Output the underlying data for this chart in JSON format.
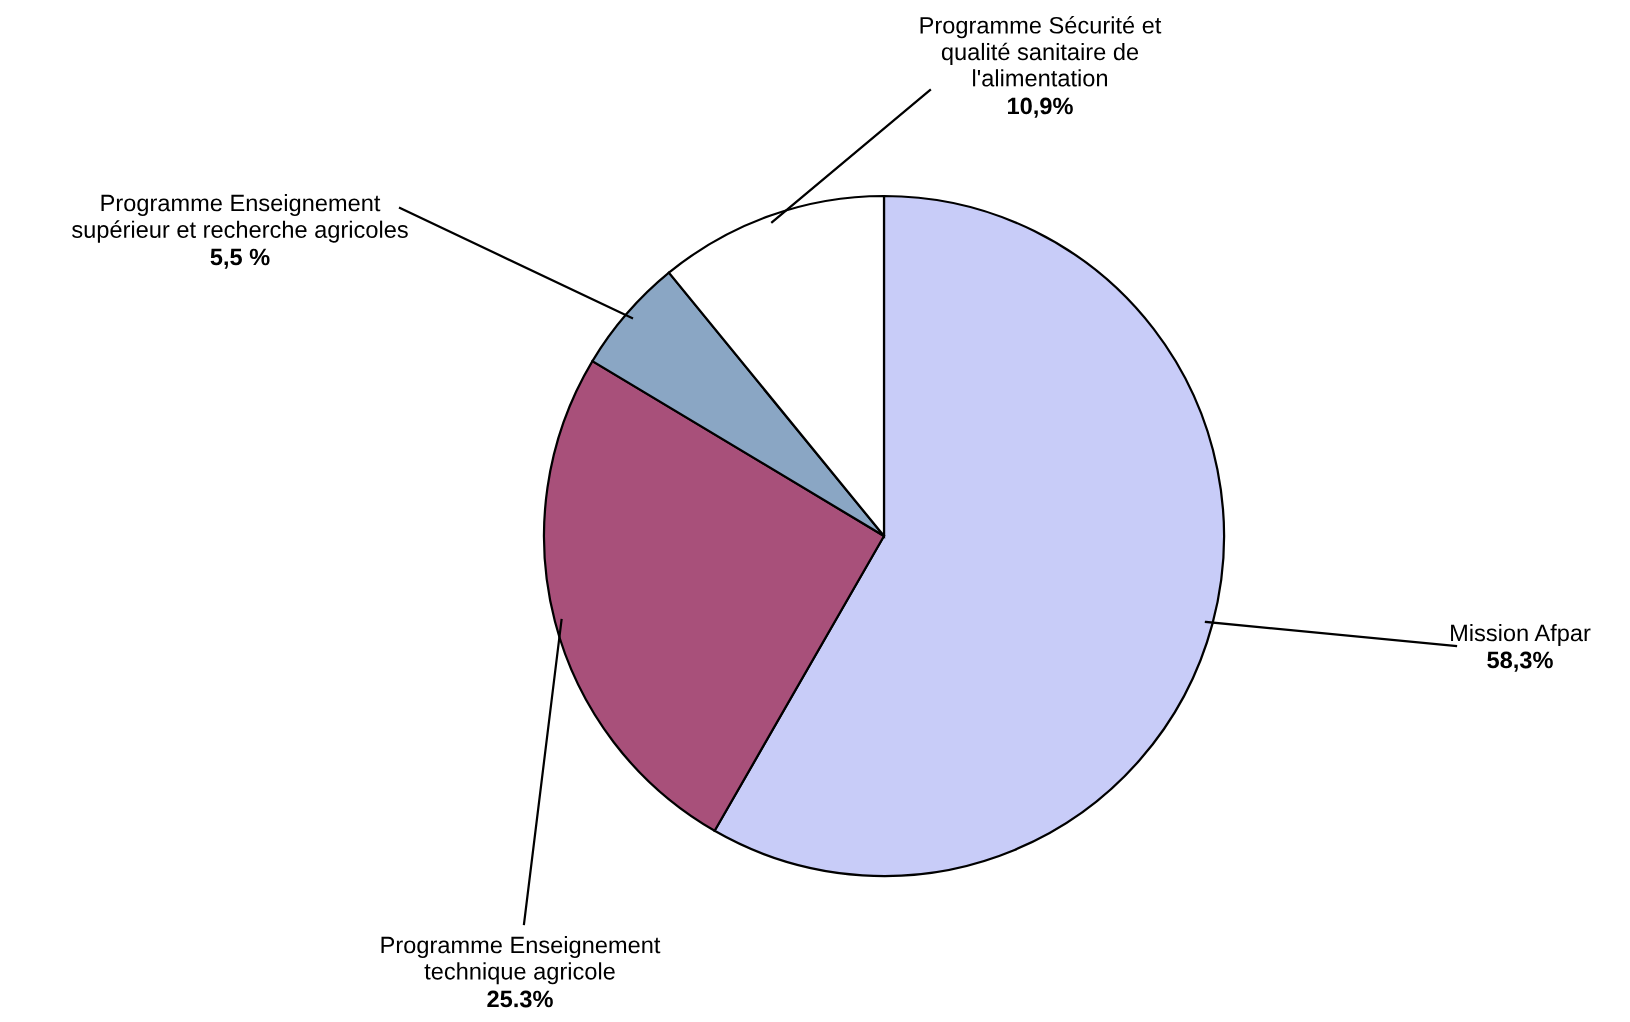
{
  "chart_data": {
    "type": "pie",
    "categories": [
      "Mission Afpar",
      "Programme Enseignement\ntechnique agricole",
      "Programme Enseignement\nsupérieur et recherche agricoles",
      "Programme Sécurité et\nqualité sanitaire de\nl'alimentation"
    ],
    "values": [
      58.3,
      25.3,
      5.5,
      10.9
    ],
    "value_labels": [
      "58,3%",
      "25.3%",
      "5,5 %",
      "10,9%"
    ],
    "colors": [
      "#c8ccf8",
      "#a8507a",
      "#8aa6c4",
      "#ffffff"
    ],
    "legend": false
  }
}
